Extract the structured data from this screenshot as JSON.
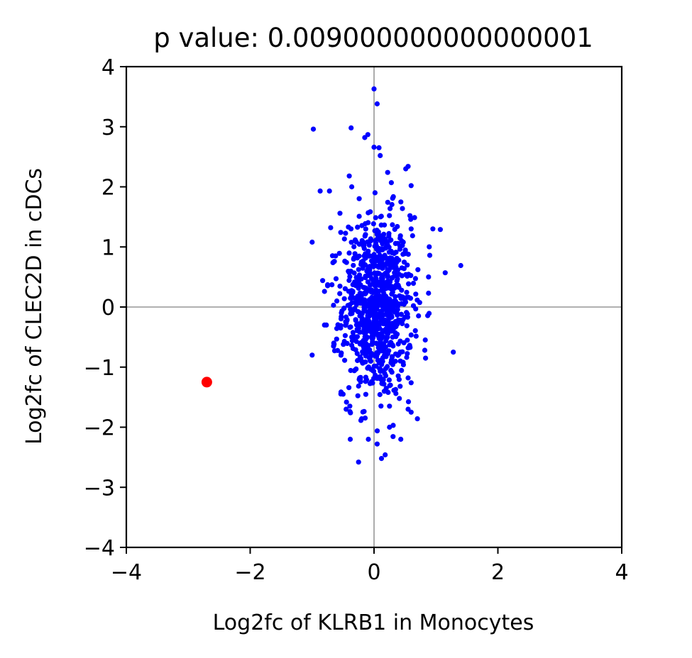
{
  "chart_data": {
    "type": "scatter",
    "title": "p value: 0.009000000000000001",
    "xlabel": "Log2fc of KLRB1 in Monocytes",
    "ylabel": "Log2fc of CLEC2D in cDCs",
    "xlim": [
      -4,
      4
    ],
    "ylim": [
      -4,
      4
    ],
    "xticks": [
      -4,
      -2,
      0,
      2,
      4
    ],
    "yticks": [
      -4,
      -3,
      -2,
      -1,
      0,
      1,
      2,
      3,
      4
    ],
    "xtick_labels": [
      "−4",
      "−2",
      "0",
      "2",
      "4"
    ],
    "ytick_labels": [
      "−4",
      "−3",
      "−2",
      "−1",
      "0",
      "1",
      "2",
      "3",
      "4"
    ],
    "reference_lines": {
      "x": 0,
      "y": 0
    },
    "grid": false,
    "series": [
      {
        "color": "#0000ff",
        "cluster": {
          "count": 900,
          "x_mean": 0.05,
          "x_sd": 0.28,
          "y_mean": 0.0,
          "y_sd": 0.75
        },
        "points": [
          [
            0.0,
            3.63
          ],
          [
            0.05,
            3.38
          ],
          [
            -0.98,
            2.96
          ],
          [
            -0.37,
            2.98
          ],
          [
            -0.15,
            2.82
          ],
          [
            -0.1,
            2.87
          ],
          [
            0.0,
            2.66
          ],
          [
            0.08,
            2.65
          ],
          [
            0.1,
            2.52
          ],
          [
            0.55,
            2.34
          ],
          [
            -0.4,
            2.18
          ],
          [
            0.22,
            2.24
          ],
          [
            -0.87,
            1.93
          ],
          [
            -0.72,
            1.93
          ],
          [
            -0.36,
            2.0
          ],
          [
            0.28,
            2.07
          ],
          [
            0.6,
            2.02
          ],
          [
            -0.55,
            1.56
          ],
          [
            -0.7,
            1.32
          ],
          [
            -1.0,
            1.08
          ],
          [
            0.58,
            1.52
          ],
          [
            0.95,
            1.3
          ],
          [
            1.07,
            1.29
          ],
          [
            0.6,
            1.3
          ],
          [
            1.4,
            0.69
          ],
          [
            1.15,
            0.57
          ],
          [
            0.9,
            0.86
          ],
          [
            0.88,
            0.5
          ],
          [
            0.88,
            0.23
          ],
          [
            -0.83,
            0.44
          ],
          [
            -0.8,
            0.26
          ],
          [
            -0.75,
            0.37
          ],
          [
            -0.68,
            0.37
          ],
          [
            -0.6,
            0.1
          ],
          [
            -0.77,
            -0.3
          ],
          [
            -0.8,
            -0.3
          ],
          [
            -1.0,
            -0.8
          ],
          [
            -0.65,
            -0.6
          ],
          [
            -0.5,
            -1.45
          ],
          [
            -0.45,
            -1.7
          ],
          [
            -0.38,
            -1.76
          ],
          [
            -0.2,
            -1.86
          ],
          [
            -0.25,
            -2.58
          ],
          [
            0.05,
            -2.28
          ],
          [
            0.12,
            -2.52
          ],
          [
            0.18,
            -2.46
          ],
          [
            0.25,
            -1.65
          ],
          [
            0.55,
            -1.7
          ],
          [
            0.6,
            -1.75
          ],
          [
            0.25,
            -2.0
          ],
          [
            0.7,
            -1.86
          ],
          [
            1.28,
            -0.75
          ],
          [
            0.82,
            -0.72
          ],
          [
            0.55,
            -1.18
          ],
          [
            0.6,
            -1.26
          ]
        ]
      },
      {
        "color": "#ff0000",
        "points": [
          [
            -2.7,
            -1.25
          ]
        ]
      }
    ]
  }
}
